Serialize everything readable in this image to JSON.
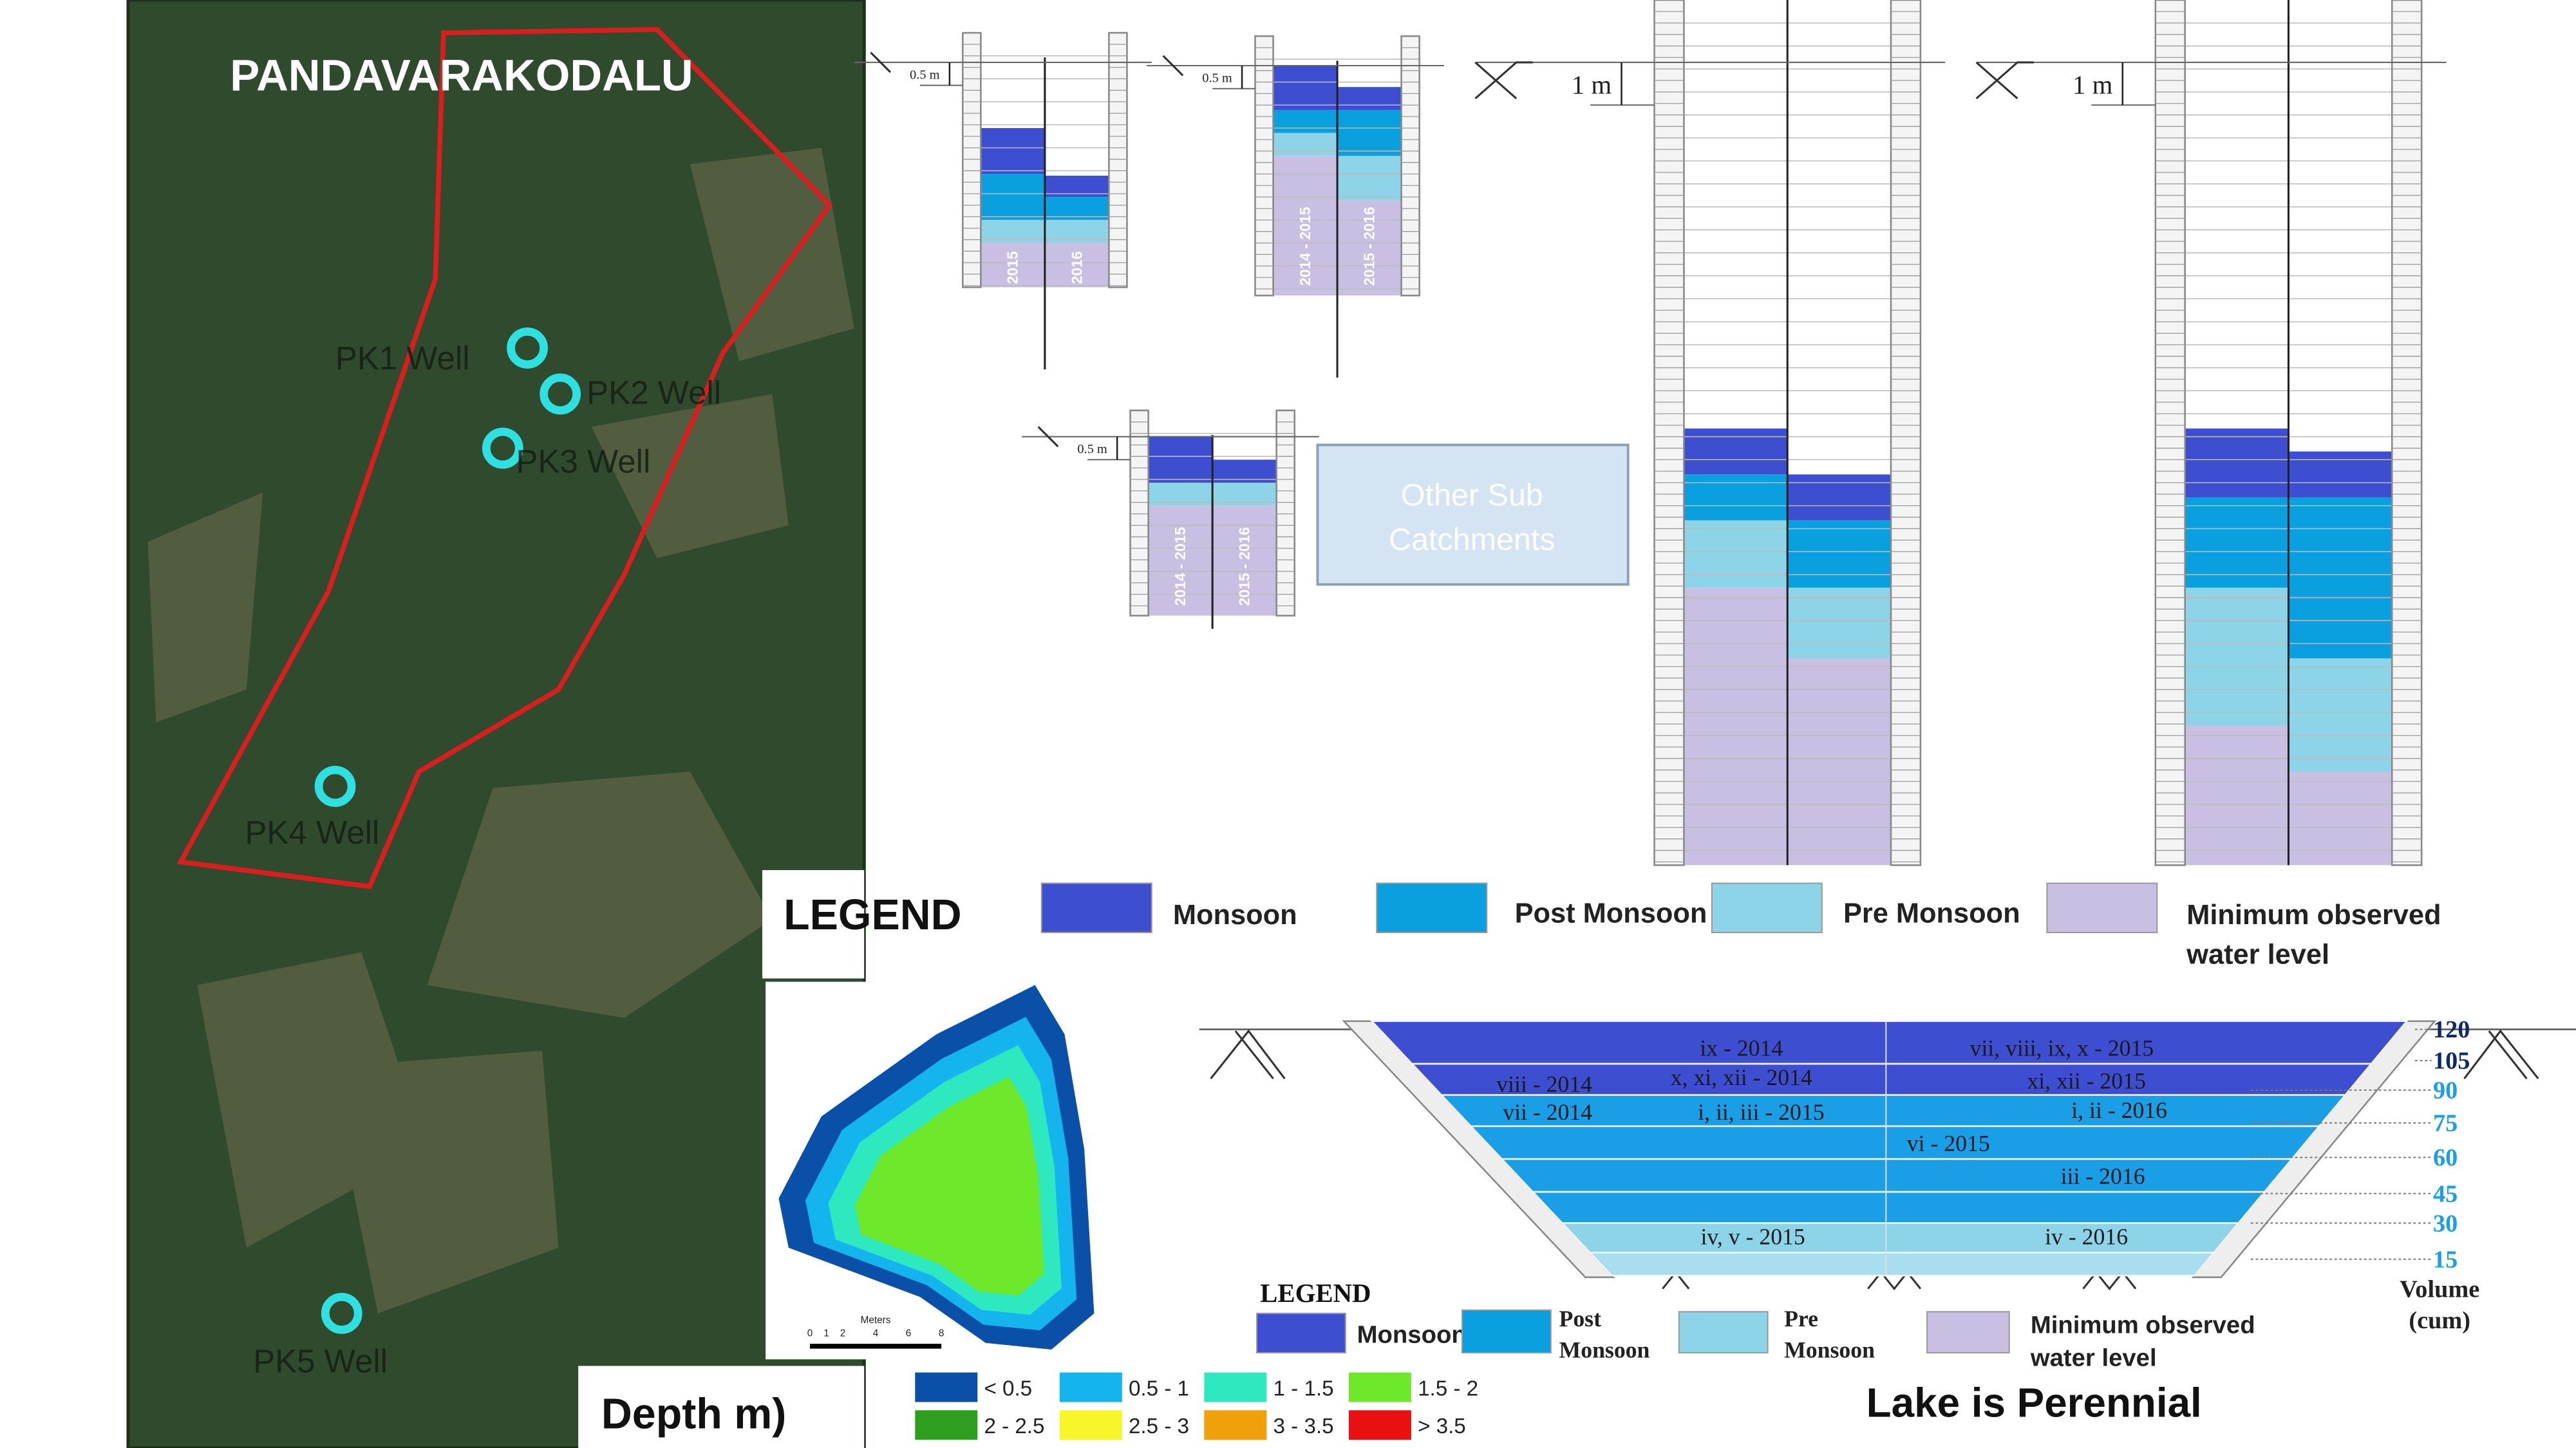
{
  "map": {
    "title": "PANDAVARAKODALU",
    "wells": [
      "PK1 Well",
      "PK2 Well",
      "PK3 Well",
      "PK4 Well",
      "PK5 Well"
    ]
  },
  "wells": {
    "depth_labels": [
      "0.5 m",
      "0.5 m",
      "0.5 m",
      "1 m",
      "1 m"
    ],
    "year_labels": [
      [
        "2015",
        "2016"
      ],
      [
        "2014 - 2015",
        "2015 - 2016"
      ],
      [
        "2014 - 2015",
        "2015 - 2016"
      ]
    ]
  },
  "other_box": {
    "lines": [
      "Other Sub",
      "Catchments"
    ]
  },
  "legend_top": {
    "title": "LEGEND",
    "items": [
      [
        "Monsoon"
      ],
      [
        "Post Monsoon"
      ],
      [
        "Pre Monsoon"
      ],
      [
        "Minimum observed",
        "water level"
      ]
    ]
  },
  "lake": {
    "labels": [
      "ix - 2014",
      "vii, viii, ix, x - 2015",
      "viii - 2014",
      "x, xi, xii - 2014",
      "xi, xii - 2015",
      "vii - 2014",
      "i, ii, iii - 2015",
      "i, ii - 2016",
      "vi - 2015",
      "iii - 2016",
      "iv, v - 2015",
      "iv - 2016"
    ],
    "volume_ticks": [
      120,
      105,
      90,
      75,
      60,
      45,
      30,
      15
    ],
    "volume_label": [
      "Volume",
      "(cum)"
    ],
    "legend": {
      "title": "LEGEND",
      "items": [
        [
          "Monsoon"
        ],
        [
          "Post",
          "Monsoon"
        ],
        [
          "Pre",
          "Monsoon"
        ],
        [
          "Minimum observed",
          "water level"
        ]
      ]
    },
    "caption": "Lake is Perennial"
  },
  "depth_map": {
    "title": "Depth m)",
    "scale_label": "Meters",
    "scale_ticks": [
      0,
      1,
      2,
      4,
      6,
      8
    ],
    "classes": [
      {
        "label": "< 0.5",
        "color": "#0a4fa8"
      },
      {
        "label": "0.5 - 1",
        "color": "#14b4ef"
      },
      {
        "label": "1 - 1.5",
        "color": "#2ee8c0"
      },
      {
        "label": "1.5 - 2",
        "color": "#6ee82a"
      },
      {
        "label": "2 - 2.5",
        "color": "#2e9e1e"
      },
      {
        "label": "2.5 - 3",
        "color": "#f6f62a"
      },
      {
        "label": "3 - 3.5",
        "color": "#f0a00a"
      },
      {
        "label": "> 3.5",
        "color": "#e81010"
      }
    ]
  }
}
